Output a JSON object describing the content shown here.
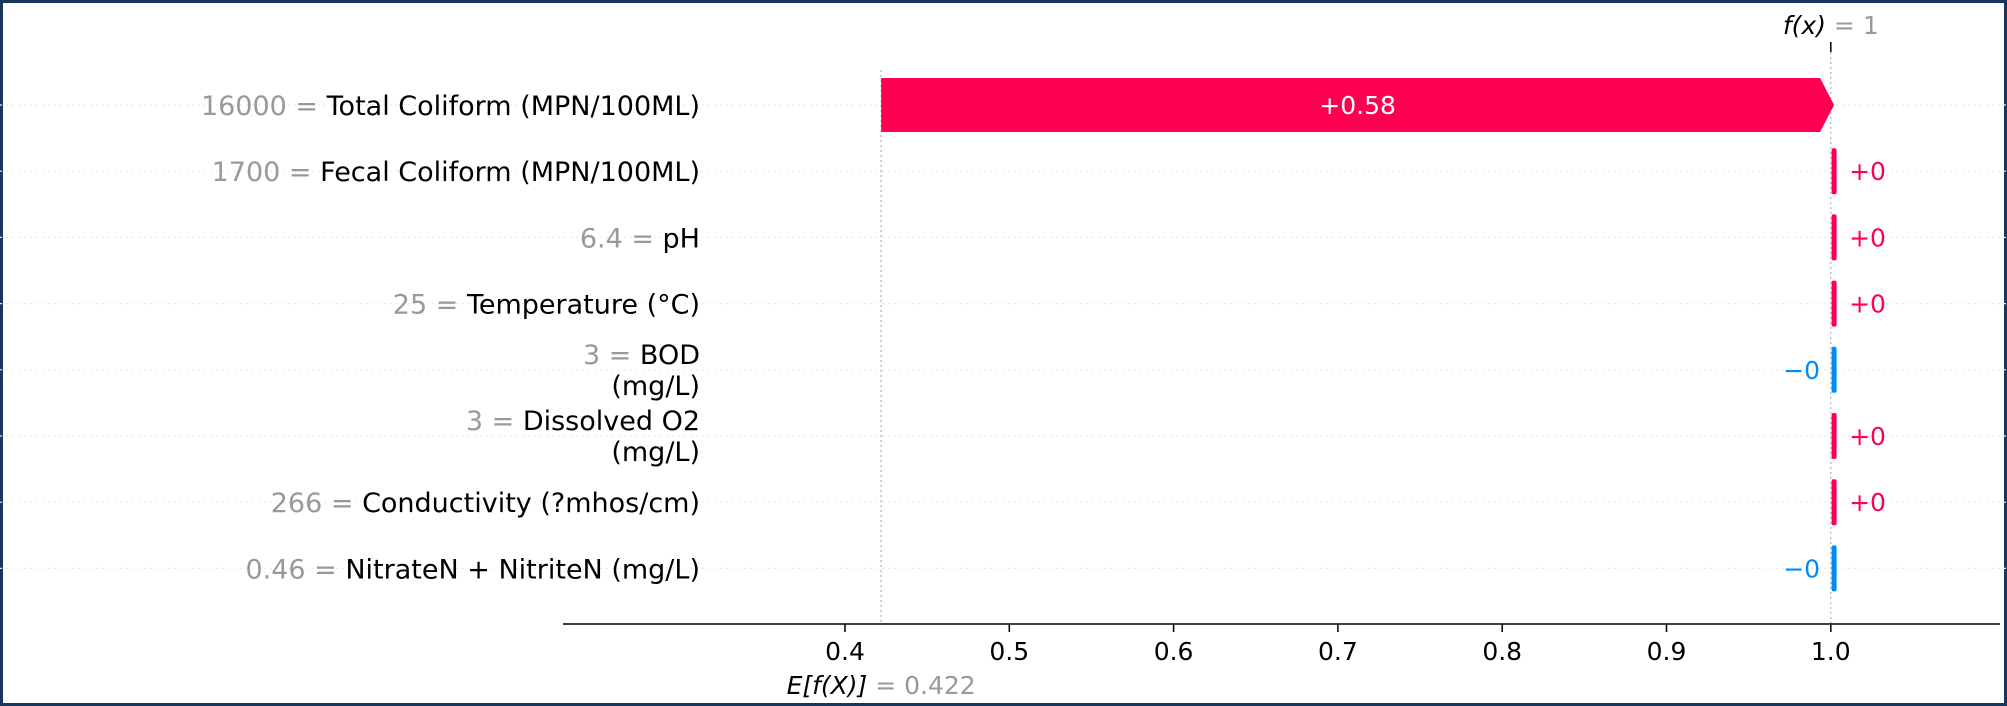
{
  "colors": {
    "positive": "#ff0051",
    "negative": "#008bfb",
    "frame": "#17375e",
    "value_gray": "#999999"
  },
  "chart_data": {
    "type": "waterfall",
    "base_value": 0.422,
    "output_value": 1,
    "xlim": [
      0.32,
      1.1
    ],
    "xticks": [
      0.4,
      0.5,
      0.6,
      0.7,
      0.8,
      0.9,
      1.0
    ],
    "xtick_labels": [
      "0.4",
      "0.5",
      "0.6",
      "0.7",
      "0.8",
      "0.9",
      "1.0"
    ],
    "fx_label": {
      "symbol": "f(x)",
      "equals": "= 1"
    },
    "efx_label": {
      "symbol": "E[f(X)]",
      "equals": "= 0.422"
    },
    "features": [
      {
        "value": "16000 =",
        "name": "Total Coliform (MPN/100ML)",
        "contribution": 0.58,
        "label": "+0.58"
      },
      {
        "value": "1700 =",
        "name": "Fecal Coliform (MPN/100ML)",
        "contribution": 0.0,
        "label": "+0"
      },
      {
        "value": "6.4 =",
        "name": "pH",
        "contribution": 0.0,
        "label": "+0"
      },
      {
        "value": "25 =",
        "name": "Temperature (°C)",
        "contribution": 0.0,
        "label": "+0"
      },
      {
        "value": "3 =",
        "name": "BOD",
        "name_line2": "(mg/L)",
        "contribution": -0.0,
        "label": "−0"
      },
      {
        "value": "3 =",
        "name": "Dissolved O2",
        "name_line2": "(mg/L)",
        "contribution": 0.0,
        "label": "+0"
      },
      {
        "value": "266 =",
        "name": "Conductivity (?mhos/cm)",
        "contribution": 0.0,
        "label": "+0"
      },
      {
        "value": "0.46 =",
        "name": "NitrateN + NitriteN (mg/L)",
        "contribution": -0.0,
        "label": "−0"
      }
    ]
  }
}
